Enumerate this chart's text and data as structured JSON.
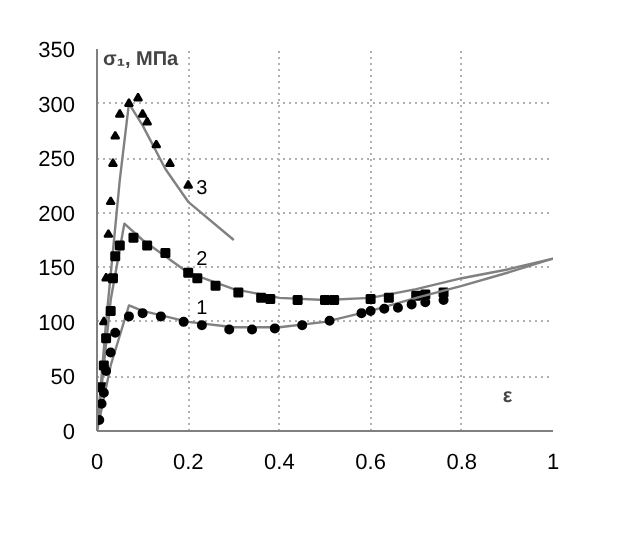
{
  "chart_data": {
    "type": "line",
    "xlabel": "ε",
    "ylabel": "σ₁, МПа",
    "xlim": [
      0,
      1
    ],
    "ylim": [
      0,
      350
    ],
    "xticks": [
      0,
      0.2,
      0.4,
      0.6,
      0.8,
      1
    ],
    "yticks": [
      0,
      50,
      100,
      150,
      200,
      250,
      300,
      350
    ],
    "grid": true,
    "series": [
      {
        "name": "3",
        "color": "#808080",
        "x": [
          0,
          0.02,
          0.05,
          0.07,
          0.1,
          0.15,
          0.2,
          0.3
        ],
        "values": [
          0,
          100,
          230,
          300,
          280,
          240,
          210,
          175
        ]
      },
      {
        "type": "scatter",
        "color": "#000000",
        "marker": "triangle",
        "x": [
          0.015,
          0.02,
          0.025,
          0.03,
          0.035,
          0.04,
          0.05,
          0.07,
          0.09,
          0.1,
          0.11,
          0.13,
          0.16,
          0.2
        ],
        "values": [
          100,
          140,
          180,
          210,
          245,
          270,
          290,
          300,
          305,
          290,
          283,
          262,
          245,
          225
        ]
      },
      {
        "name": "2",
        "color": "#808080",
        "x": [
          0,
          0.03,
          0.06,
          0.1,
          0.2,
          0.3,
          0.4,
          0.5,
          0.6,
          0.7,
          0.8,
          0.9,
          1
        ],
        "values": [
          0,
          120,
          190,
          175,
          145,
          130,
          122,
          120,
          122,
          130,
          140,
          148,
          158
        ]
      },
      {
        "type": "scatter",
        "color": "#000000",
        "marker": "square",
        "x": [
          0.01,
          0.015,
          0.02,
          0.03,
          0.035,
          0.04,
          0.05,
          0.08,
          0.11,
          0.15,
          0.2,
          0.22,
          0.26,
          0.31,
          0.36,
          0.38,
          0.44,
          0.5,
          0.52,
          0.6,
          0.64,
          0.7,
          0.72,
          0.76
        ],
        "values": [
          40,
          60,
          85,
          110,
          140,
          160,
          170,
          177,
          170,
          163,
          145,
          140,
          133,
          127,
          122,
          121,
          120,
          120,
          120,
          121,
          122,
          124,
          125,
          127
        ]
      },
      {
        "name": "1",
        "color": "#808080",
        "x": [
          0,
          0.03,
          0.07,
          0.1,
          0.2,
          0.3,
          0.4,
          0.5,
          0.6,
          0.7,
          0.8,
          0.9,
          1
        ],
        "values": [
          0,
          60,
          115,
          110,
          100,
          95,
          95,
          100,
          110,
          122,
          133,
          145,
          158
        ]
      },
      {
        "type": "scatter",
        "color": "#000000",
        "marker": "circle",
        "x": [
          0.005,
          0.01,
          0.015,
          0.02,
          0.03,
          0.04,
          0.07,
          0.1,
          0.14,
          0.19,
          0.23,
          0.29,
          0.34,
          0.39,
          0.45,
          0.51,
          0.58,
          0.6,
          0.63,
          0.66,
          0.69,
          0.72,
          0.76
        ],
        "values": [
          10,
          25,
          35,
          55,
          72,
          90,
          105,
          108,
          105,
          100,
          97,
          93,
          93,
          94,
          97,
          101,
          108,
          110,
          112,
          113,
          116,
          118,
          120
        ]
      }
    ]
  }
}
